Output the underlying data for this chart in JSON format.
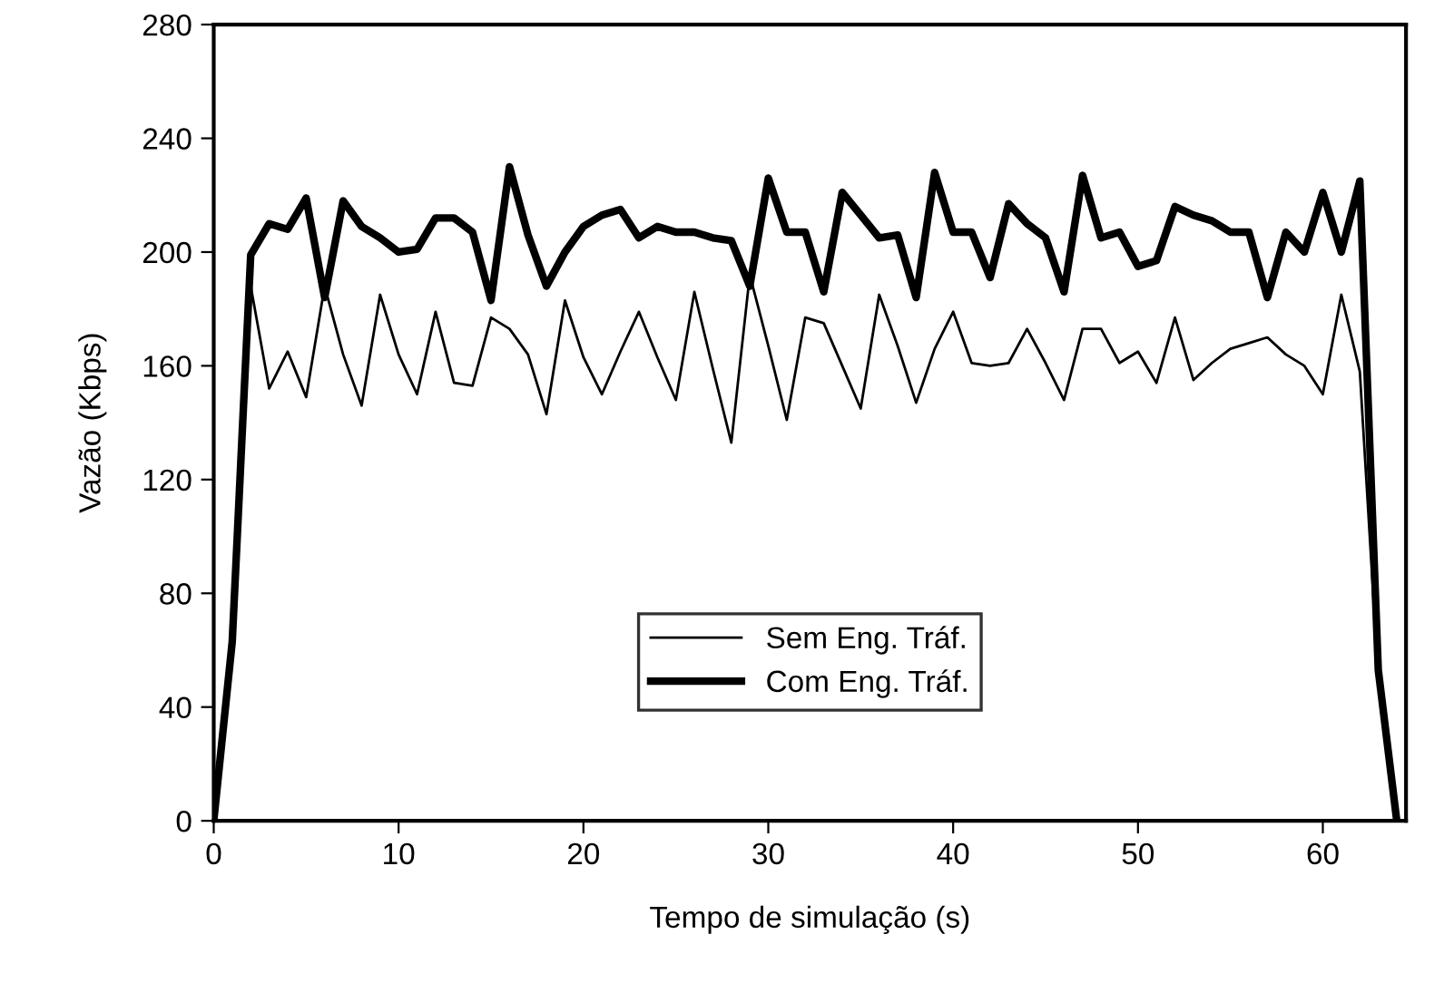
{
  "chart_data": {
    "type": "line",
    "xlabel": "Tempo de simulação (s)",
    "ylabel": "Vazão (Kbps)",
    "x": [
      0,
      1,
      2,
      3,
      4,
      5,
      6,
      7,
      8,
      9,
      10,
      11,
      12,
      13,
      14,
      15,
      16,
      17,
      18,
      19,
      20,
      21,
      22,
      23,
      24,
      25,
      26,
      27,
      28,
      29,
      30,
      31,
      32,
      33,
      34,
      35,
      36,
      37,
      38,
      39,
      40,
      41,
      42,
      43,
      44,
      45,
      46,
      47,
      48,
      49,
      50,
      51,
      52,
      53,
      54,
      55,
      56,
      57,
      58,
      59,
      60,
      61,
      62,
      63,
      64
    ],
    "series": [
      {
        "name": "Sem Eng. Tráf.",
        "color": "#000000",
        "values": [
          0,
          65,
          188,
          152,
          165,
          149,
          188,
          164,
          146,
          185,
          164,
          150,
          179,
          154,
          153,
          177,
          173,
          164,
          143,
          183,
          163,
          150,
          165,
          179,
          163,
          148,
          186,
          159,
          133,
          192,
          167,
          141,
          177,
          175,
          160,
          145,
          185,
          167,
          147,
          166,
          179,
          161,
          160,
          161,
          173,
          161,
          148,
          173,
          173,
          161,
          165,
          154,
          177,
          155,
          161,
          166,
          168,
          170,
          164,
          160,
          150,
          185,
          158,
          50,
          0
        ]
      },
      {
        "name": "Com Eng. Tráf.",
        "color": "#000000",
        "values": [
          0,
          63,
          199,
          210,
          208,
          219,
          184,
          218,
          209,
          205,
          200,
          201,
          212,
          212,
          207,
          183,
          230,
          206,
          188,
          200,
          209,
          213,
          215,
          205,
          209,
          207,
          207,
          205,
          204,
          188,
          226,
          207,
          207,
          186,
          221,
          213,
          205,
          206,
          184,
          228,
          207,
          207,
          191,
          217,
          210,
          205,
          186,
          227,
          205,
          207,
          195,
          197,
          216,
          213,
          211,
          207,
          207,
          184,
          207,
          200,
          221,
          200,
          225,
          53,
          0
        ]
      }
    ],
    "xlim": [
      0,
      64.5
    ],
    "xticks": [
      0,
      10,
      20,
      30,
      40,
      50,
      60
    ],
    "ylim": [
      0,
      280
    ],
    "yticks": [
      0,
      40,
      80,
      120,
      160,
      200,
      240,
      280
    ],
    "grid": false,
    "legend": "bottom",
    "marker": "none",
    "line_style": "solid"
  }
}
